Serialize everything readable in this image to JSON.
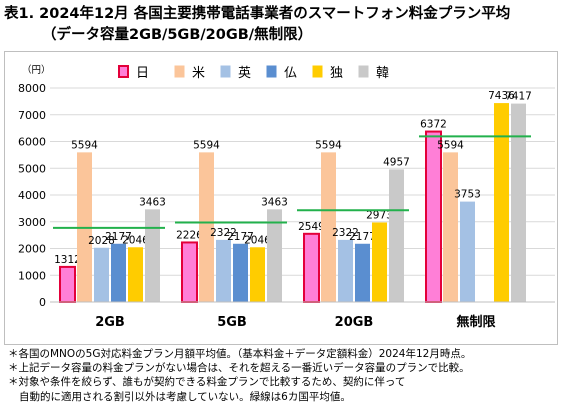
{
  "title_line1": "表1. 2024年12月 各国主要携帯電話事業者のスマートフォン料金プラン平均",
  "title_line2": "（データ容量2GB/5GB/20GB/無制限）",
  "notes": [
    "＊各国のMNOの5G対応料金プラン月額平均値。（基本料金＋データ定額料金）2024年12月時点。",
    "＊上記データ容量の料金プランがない場合は、それを超える一番近いデータ容量のプランで比較。",
    "＊対象や条件を絞らず、誰もが契約できる料金プランで比較するため、契約に伴って",
    "自動的に適用される割引以外は考慮していない。緑線は6カ国平均値。"
  ],
  "chart_data": {
    "type": "bar",
    "y_unit": "（円）",
    "ylim": [
      0,
      8000
    ],
    "yticks": [
      0,
      1000,
      2000,
      3000,
      4000,
      5000,
      6000,
      7000,
      8000
    ],
    "grid": true,
    "legend_position": "top",
    "categories": [
      "2GB",
      "5GB",
      "20GB",
      "無制限"
    ],
    "series": [
      {
        "name": "日",
        "color": "#ff7fd7",
        "stroke": "#e3003a",
        "values": [
          1312,
          2226,
          2549,
          6372
        ]
      },
      {
        "name": "米",
        "color": "#fbc59a",
        "stroke": "#fbc59a",
        "values": [
          5594,
          5594,
          5594,
          5594
        ]
      },
      {
        "name": "英",
        "color": "#a4c1e4",
        "stroke": "#a4c1e4",
        "values": [
          2028,
          2322,
          2322,
          3753
        ]
      },
      {
        "name": "仏",
        "color": "#5a8ed0",
        "stroke": "#5a8ed0",
        "values": [
          2177,
          2177,
          2177,
          null
        ]
      },
      {
        "name": "独",
        "color": "#ffcc00",
        "stroke": "#ffcc00",
        "values": [
          2046,
          2046,
          2973,
          7436
        ]
      },
      {
        "name": "韓",
        "color": "#c9c9c9",
        "stroke": "#c9c9c9",
        "values": [
          3463,
          3463,
          4957,
          7417
        ]
      }
    ],
    "average_line_color": "#22b14c",
    "averages": [
      2770,
      2970,
      3430,
      6190
    ]
  }
}
